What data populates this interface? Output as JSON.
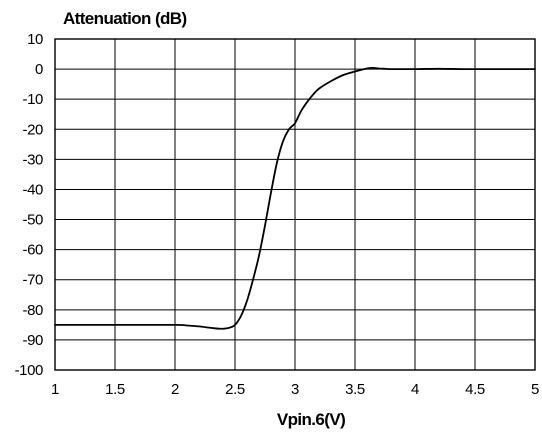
{
  "chart_data": {
    "type": "line",
    "title": "Attenuation (dB)",
    "xlabel": "Vpin.6(V)",
    "ylabel": "",
    "xlim": [
      1,
      5
    ],
    "ylim": [
      -100,
      10
    ],
    "xticks": [
      1,
      1.5,
      2,
      2.5,
      3,
      3.5,
      4,
      4.5,
      5
    ],
    "yticks": [
      10,
      0,
      -10,
      -20,
      -30,
      -40,
      -50,
      -60,
      -70,
      -80,
      -90,
      -100
    ],
    "grid": true,
    "legend": "none",
    "series": [
      {
        "color": "#000000",
        "x": [
          1.0,
          1.5,
          2.0,
          2.1,
          2.2,
          2.3,
          2.38,
          2.45,
          2.5,
          2.55,
          2.6,
          2.65,
          2.7,
          2.75,
          2.8,
          2.85,
          2.9,
          2.95,
          3.0,
          3.05,
          3.1,
          3.15,
          3.2,
          3.3,
          3.4,
          3.5,
          3.6,
          3.65,
          3.7,
          3.75,
          3.8,
          4.0,
          4.2,
          4.4,
          4.6,
          4.8,
          5.0
        ],
        "y": [
          -85,
          -85,
          -85,
          -85.2,
          -85.5,
          -86,
          -86.3,
          -86,
          -85,
          -82,
          -77,
          -70,
          -62,
          -52,
          -41,
          -31,
          -24,
          -20,
          -18,
          -14,
          -11,
          -8.5,
          -6.5,
          -4,
          -2,
          -0.8,
          0.2,
          0.4,
          0.2,
          0.1,
          0,
          0,
          0.1,
          0,
          0,
          0,
          0
        ]
      }
    ]
  }
}
